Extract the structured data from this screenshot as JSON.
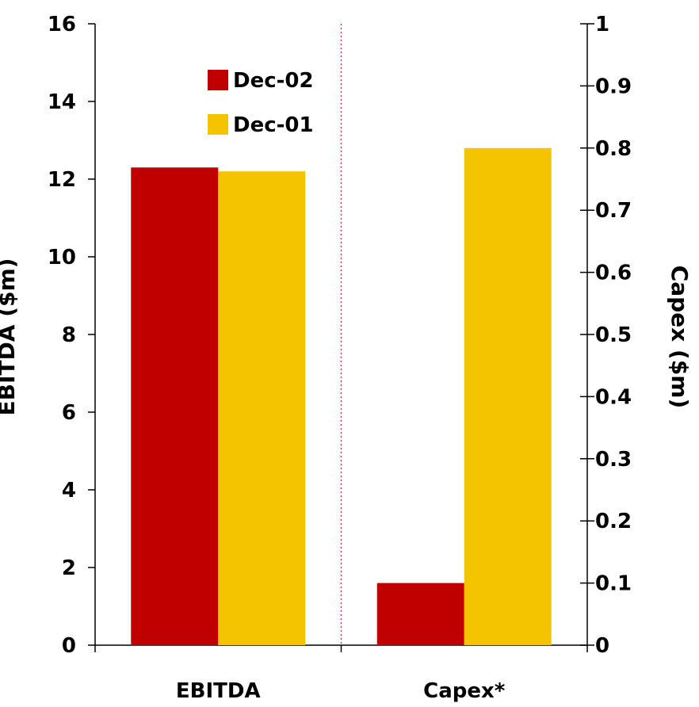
{
  "chart_data": {
    "type": "bar",
    "categories": [
      "EBITDA",
      "Capex*"
    ],
    "left_axis": {
      "label": "EBITDA ($m)",
      "ylim": [
        0,
        16
      ],
      "ticks": [
        "0",
        "2",
        "4",
        "6",
        "8",
        "10",
        "12",
        "14",
        "16"
      ]
    },
    "right_axis": {
      "label": "Capex ($m)",
      "ylim": [
        0,
        1
      ],
      "ticks": [
        "0",
        "0.1",
        "0.2",
        "0.3",
        "0.4",
        "0.5",
        "0.6",
        "0.7",
        "0.8",
        "0.9",
        "1"
      ]
    },
    "series": [
      {
        "name": "Dec-02",
        "color": "#c00000",
        "values": [
          12.3,
          0.1
        ]
      },
      {
        "name": "Dec-01",
        "color": "#f5c400",
        "values": [
          12.2,
          0.8
        ]
      }
    ],
    "category_axis": [
      "left",
      "right"
    ],
    "separator_color": "#d04040",
    "grid": false,
    "legend": "top-left"
  }
}
